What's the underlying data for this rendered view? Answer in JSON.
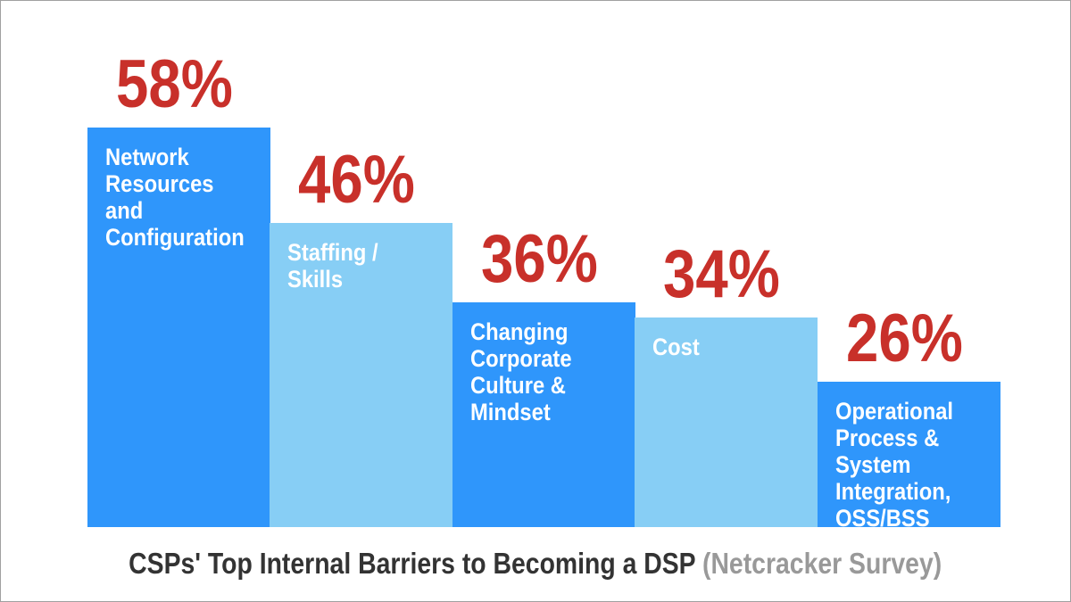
{
  "chart_data": {
    "type": "bar",
    "title": "CSPs' Top Internal Barriers to Becoming a DSP",
    "subtitle": "(Netcracker Survey)",
    "categories": [
      "Network\nResources\nand\nConfiguration",
      "Staffing /\nSkills",
      "Changing\nCorporate\nCulture &\nMindset",
      "Cost",
      "Operational\nProcess &\nSystem\nIntegration,\nOSS/BSS"
    ],
    "values": [
      58,
      46,
      36,
      34,
      26
    ],
    "value_labels": [
      "58%",
      "46%",
      "36%",
      "34%",
      "26%"
    ],
    "unit": "%",
    "bar_colors": [
      "#2f96fb",
      "#87cef5",
      "#2f96fb",
      "#87cef5",
      "#2f96fb"
    ],
    "value_label_color": "#c8302a",
    "ylim": [
      7.6,
      65
    ],
    "grid": false,
    "axes_visible": false,
    "legend": "none"
  }
}
